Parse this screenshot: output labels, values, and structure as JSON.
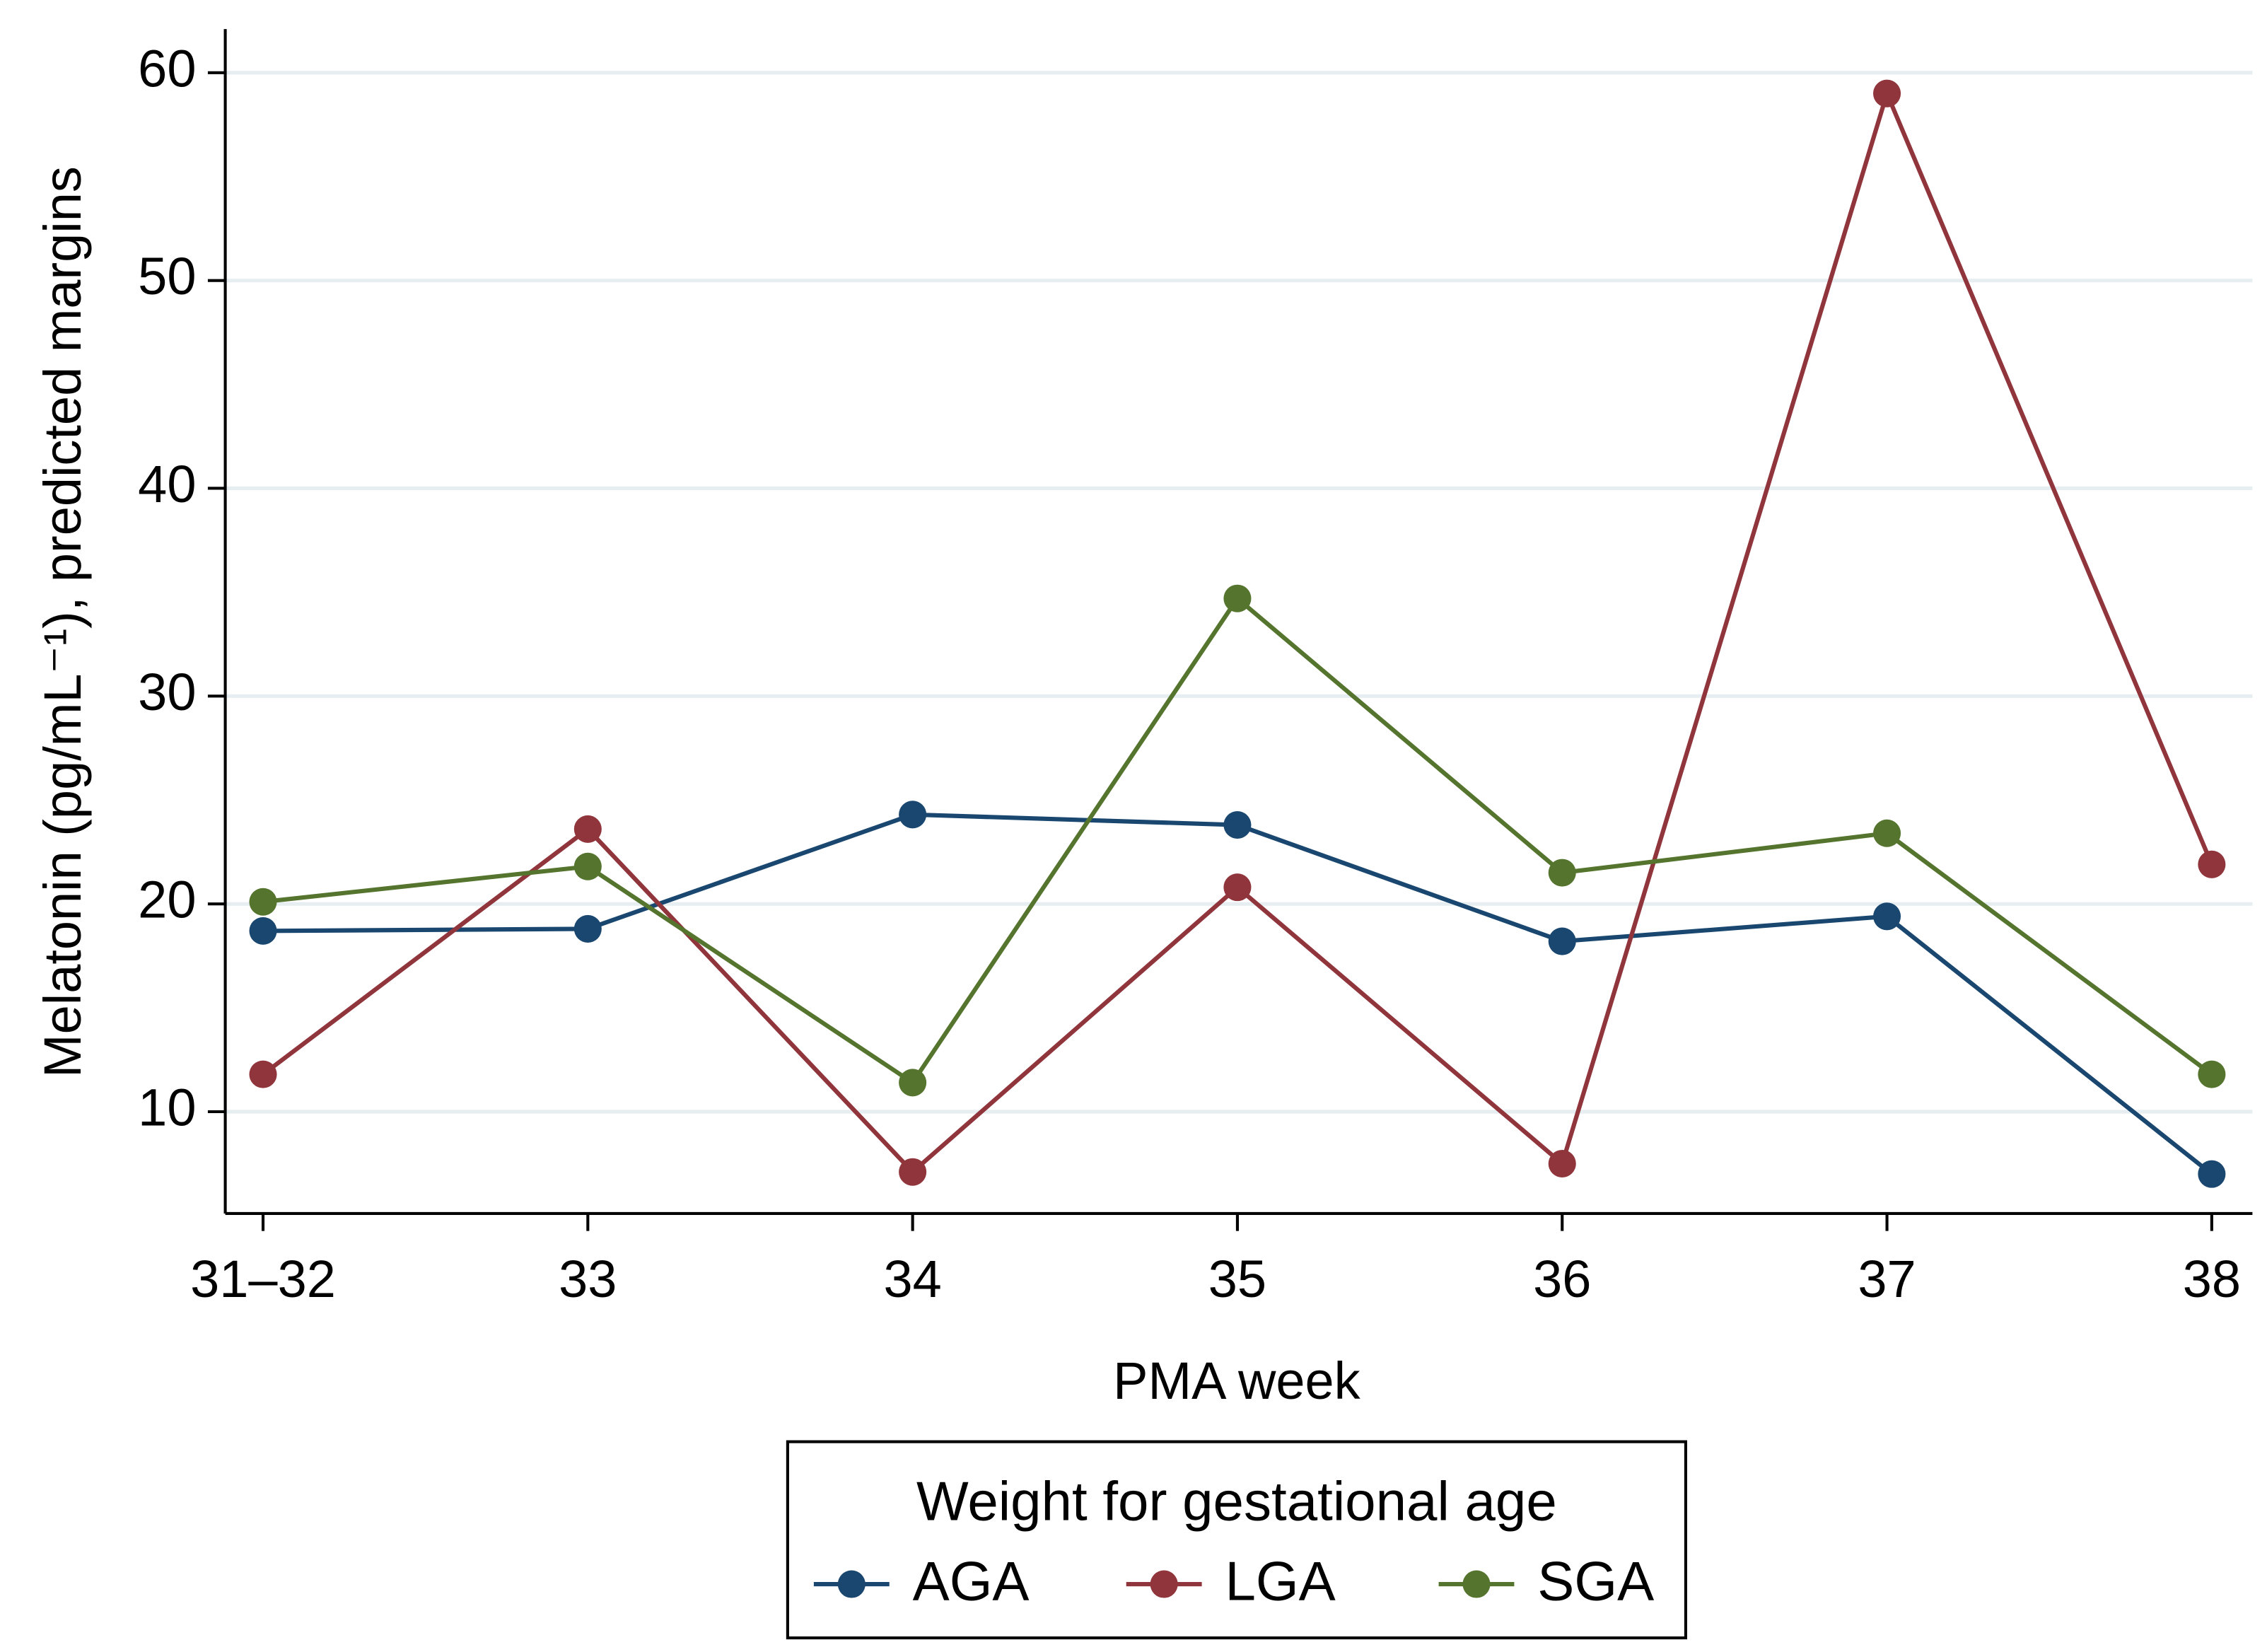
{
  "chart_data": {
    "type": "line",
    "x_label": "PMA week",
    "y_label": "Melatonin (pg/mL⁻¹),  predicted margins",
    "categories": [
      "31–32",
      "33",
      "34",
      "35",
      "36",
      "37",
      "38"
    ],
    "series": [
      {
        "name": "AGA",
        "color": "#1a476f",
        "values": [
          18.7,
          18.8,
          24.3,
          23.8,
          18.2,
          19.4,
          7.0
        ]
      },
      {
        "name": "LGA",
        "color": "#90353b",
        "values": [
          11.8,
          23.6,
          7.1,
          20.8,
          7.5,
          59.0,
          21.9
        ]
      },
      {
        "name": "SGA",
        "color": "#55752f",
        "values": [
          20.1,
          21.8,
          11.4,
          34.7,
          21.5,
          23.4,
          11.8
        ]
      }
    ],
    "ylim": [
      5.1,
      62.1
    ],
    "yticks": [
      10,
      20,
      30,
      40,
      50,
      60
    ],
    "grid": true,
    "legend": {
      "title": "Weight for gestational age",
      "position": "bottom"
    }
  }
}
